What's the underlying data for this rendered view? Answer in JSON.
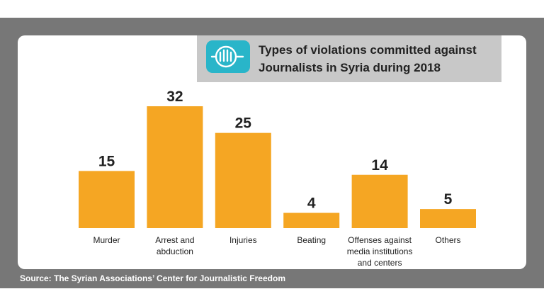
{
  "colors": {
    "background_frame": "#777777",
    "card": "#ffffff",
    "title_box": "#c8c8c8",
    "logo": "#29b5c9",
    "bar": "#f5a623",
    "text": "#222222"
  },
  "logo": {
    "icon": "journalism-center-logo-icon"
  },
  "chart_data": {
    "type": "bar",
    "title": "Types of violations committed against Journalists in Syria during 2018",
    "categories": [
      "Murder",
      "Arrest and abduction",
      "Injuries",
      "Beating",
      "Offenses against media institutions and centers",
      "Others"
    ],
    "category_lines": [
      [
        "Murder"
      ],
      [
        "Arrest and",
        "abduction"
      ],
      [
        "Injuries"
      ],
      [
        "Beating"
      ],
      [
        "Offenses against",
        "media institutions",
        "and centers"
      ],
      [
        "Others"
      ]
    ],
    "values": [
      15,
      32,
      25,
      4,
      14,
      5
    ],
    "data_labels": [
      "15",
      "32",
      "25",
      "4",
      "14",
      "5"
    ],
    "ylim": [
      0,
      32
    ],
    "grid": false,
    "legend": "none",
    "axes_visible": false
  },
  "source": "Source: The Syrian Associations’ Center for Journalistic Freedom"
}
